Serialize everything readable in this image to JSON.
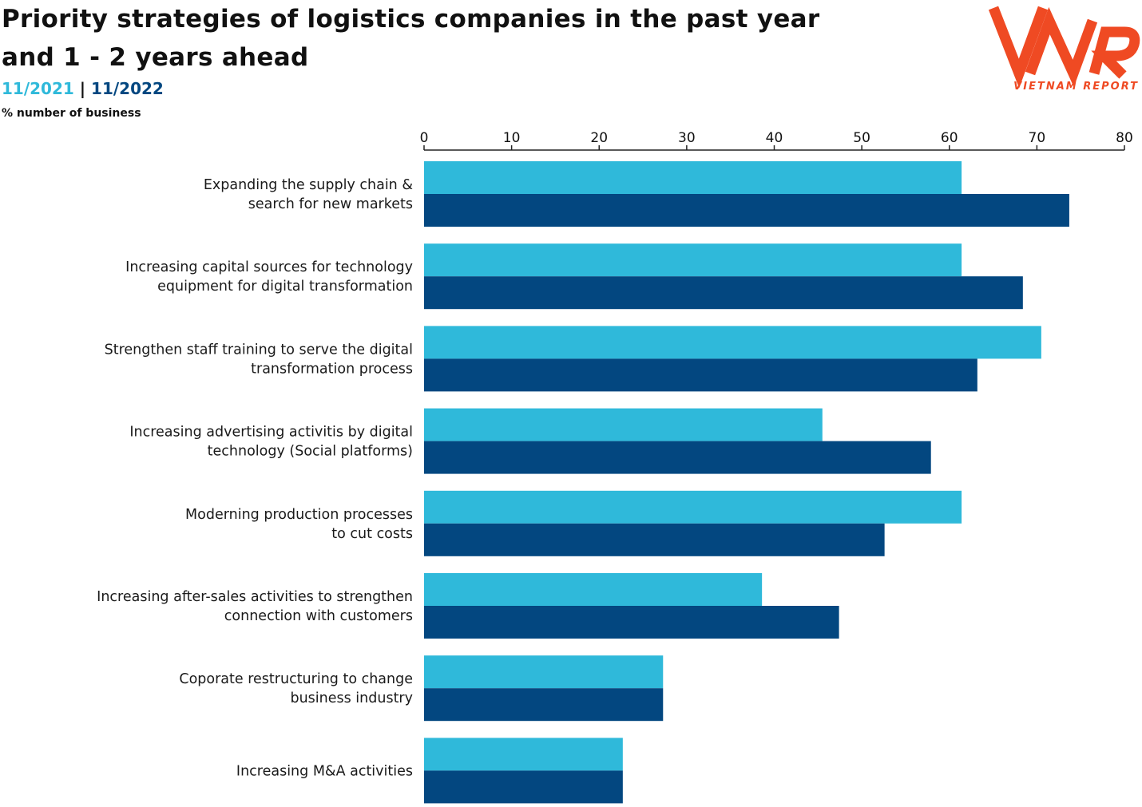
{
  "title_line1": "Priority strategies of logistics companies in the past year",
  "title_line2": "and 1 - 2 years ahead",
  "legend": {
    "s1": "11/2021",
    "sep": " | ",
    "s2": "11/2022"
  },
  "unit": "% number of business",
  "logo": {
    "mark": "VNR",
    "text": "VIETNAM REPORT",
    "color": "#ef4a23"
  },
  "colors": {
    "s2021": "#2fb9da",
    "s2022": "#034780"
  },
  "chart_data": {
    "type": "bar",
    "orientation": "horizontal",
    "categories": [
      [
        "Expanding the supply chain &",
        "search for new markets"
      ],
      [
        "Increasing capital sources for technology",
        "equipment for digital transformation"
      ],
      [
        "Strengthen staff training to serve the digital",
        "transformation process"
      ],
      [
        "Increasing advertising activitis by digital",
        "technology (Social platforms)"
      ],
      [
        "Moderning production processes",
        "to cut costs"
      ],
      [
        "Increasing after-sales activities to strengthen",
        "connection with customers"
      ],
      [
        "Coporate restructuring to change",
        "business industry"
      ],
      [
        "Increasing M&A activities"
      ]
    ],
    "series": [
      {
        "name": "11/2021",
        "color": "#2fb9da",
        "values": [
          61.4,
          61.4,
          70.5,
          45.5,
          61.4,
          38.6,
          27.3,
          22.7
        ]
      },
      {
        "name": "11/2022",
        "color": "#034780",
        "values": [
          73.7,
          68.4,
          63.2,
          57.9,
          52.6,
          47.4,
          27.3,
          22.7
        ]
      }
    ],
    "xlim": [
      0,
      80
    ],
    "ticks": [
      0,
      10,
      20,
      30,
      40,
      50,
      60,
      70,
      80
    ],
    "axis_position": "top",
    "grid": false,
    "legend_placement": "top-left"
  }
}
